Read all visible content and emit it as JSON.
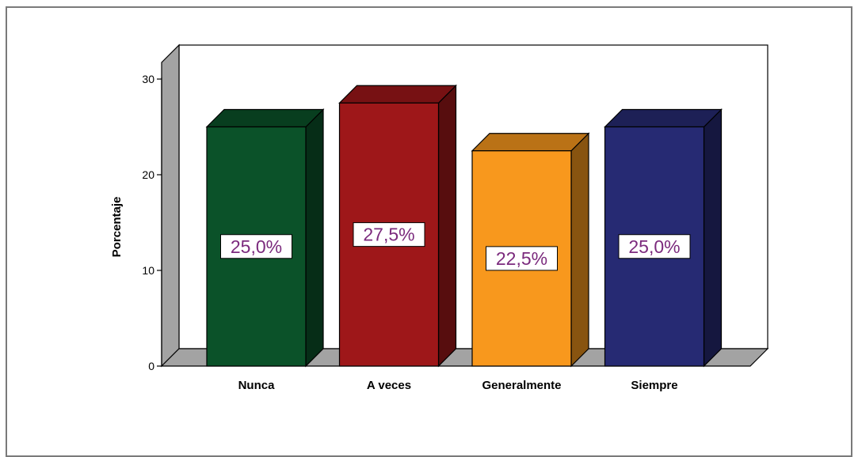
{
  "chart_data": {
    "type": "bar",
    "categories": [
      "Nunca",
      "A veces",
      "Generalmente",
      "Siempre"
    ],
    "values": [
      25.0,
      27.5,
      22.5,
      25.0
    ],
    "data_labels": [
      "25,0%",
      "27,5%",
      "22,5%",
      "25,0%"
    ],
    "colors": [
      "#0b5229",
      "#9e1719",
      "#f8981d",
      "#262a73"
    ],
    "ylabel": "Porcentaje",
    "xlabel": "",
    "ylim": [
      0,
      30
    ],
    "yticks": [
      0,
      10,
      20,
      30
    ],
    "grid": false,
    "legend": "none",
    "style": "3d"
  }
}
